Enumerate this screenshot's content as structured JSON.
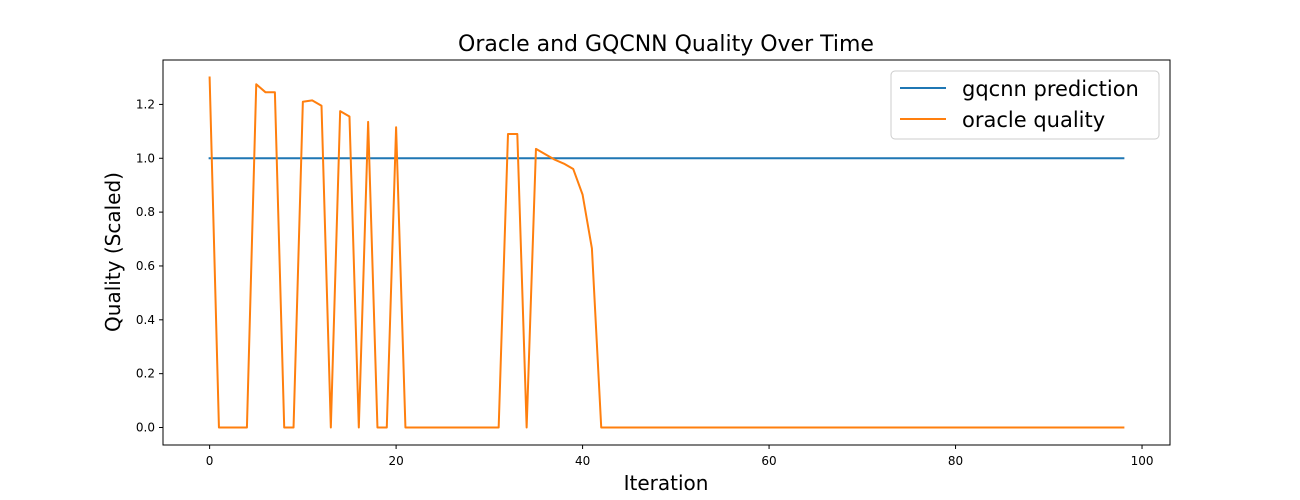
{
  "chart_data": {
    "type": "line",
    "title": "Oracle and GQCNN Quality Over Time",
    "xlabel": "Iteration",
    "ylabel": "Quality (Scaled)",
    "xlim": [
      -5,
      103
    ],
    "ylim": [
      -0.065,
      1.365
    ],
    "xticks": [
      0,
      20,
      40,
      60,
      80,
      100
    ],
    "xtick_labels": [
      "0",
      "20",
      "40",
      "60",
      "80",
      "100"
    ],
    "yticks": [
      0.0,
      0.2,
      0.4,
      0.6,
      0.8,
      1.0,
      1.2
    ],
    "ytick_labels": [
      "0.0",
      "0.2",
      "0.4",
      "0.6",
      "0.8",
      "1.0",
      "1.2"
    ],
    "grid": false,
    "legend_position": "top-right",
    "series": [
      {
        "name": "gqcnn prediction",
        "color": "#1f77b4",
        "x": [
          0,
          98
        ],
        "y": [
          1.0,
          1.0
        ]
      },
      {
        "name": "oracle quality",
        "color": "#ff7f0e",
        "x": [
          0,
          1,
          2,
          3,
          4,
          5,
          6,
          7,
          8,
          9,
          10,
          11,
          12,
          13,
          14,
          15,
          16,
          17,
          18,
          19,
          20,
          21,
          22,
          23,
          24,
          25,
          26,
          27,
          28,
          29,
          30,
          31,
          32,
          33,
          34,
          35,
          36,
          37,
          38,
          39,
          40,
          41,
          42,
          43,
          98
        ],
        "y": [
          1.3,
          0.0,
          0.0,
          0.0,
          0.0,
          1.275,
          1.245,
          1.245,
          0.0,
          0.0,
          1.21,
          1.215,
          1.195,
          0.0,
          1.175,
          1.155,
          0.0,
          1.135,
          0.0,
          0.0,
          1.115,
          0.0,
          0.0,
          0.0,
          0.0,
          0.0,
          0.0,
          0.0,
          0.0,
          0.0,
          0.0,
          0.0,
          1.09,
          1.09,
          0.0,
          1.035,
          1.015,
          0.995,
          0.98,
          0.96,
          0.865,
          0.665,
          0.0,
          0.0,
          0.0
        ]
      }
    ]
  }
}
